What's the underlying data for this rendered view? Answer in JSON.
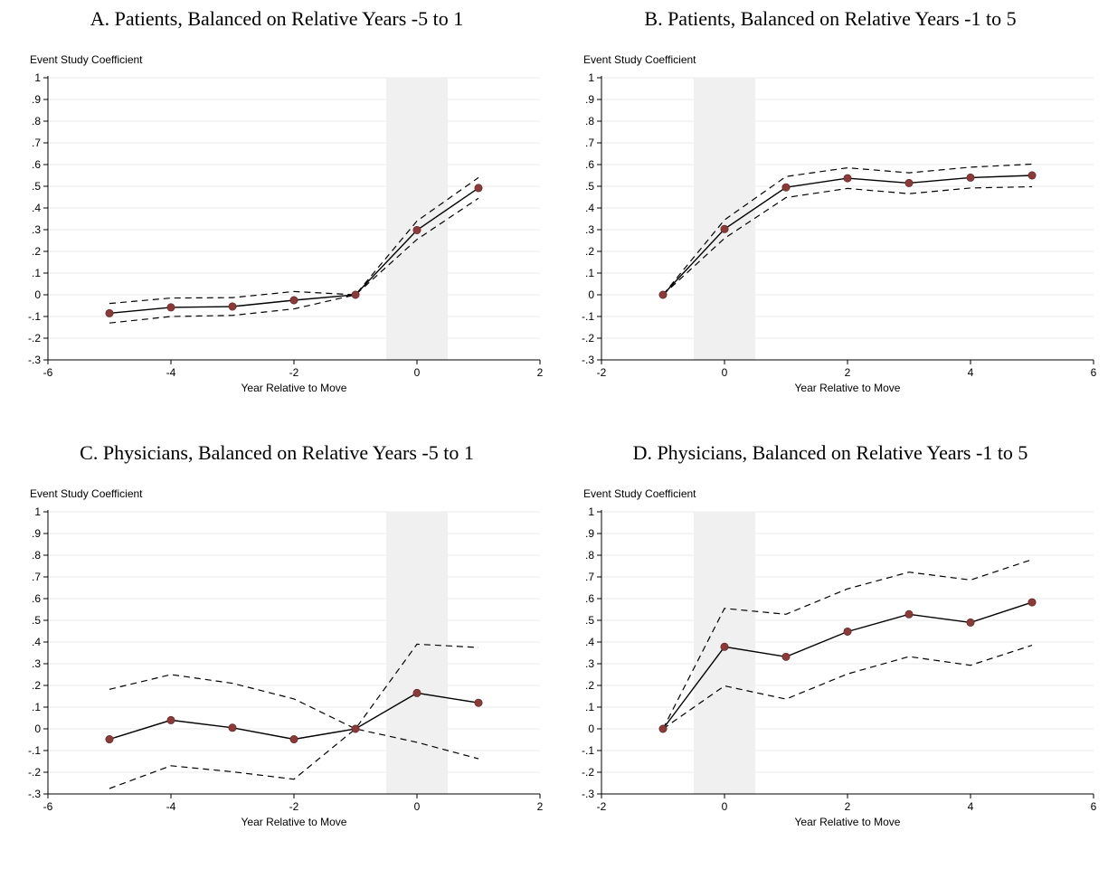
{
  "chart_data": [
    {
      "id": "A",
      "type": "line",
      "title": "A. Patients, Balanced on Relative Years -5 to 1",
      "ylabel": "Event Study Coefficient",
      "xlabel": "Year Relative to Move",
      "xlim": [
        -6,
        2
      ],
      "ylim": [
        -0.3,
        1
      ],
      "xticks": [
        -6,
        -4,
        -2,
        0,
        2
      ],
      "yticks": [
        1,
        0.9,
        0.8,
        0.7,
        0.6,
        0.5,
        0.4,
        0.3,
        0.2,
        0.1,
        0,
        -0.1,
        -0.2,
        -0.3
      ],
      "ytick_labels": [
        "1",
        ".9",
        ".8",
        ".7",
        ".6",
        ".5",
        ".4",
        ".3",
        ".2",
        ".1",
        "0",
        "-.1",
        "-.2",
        "-.3"
      ],
      "shade": [
        -0.5,
        0.5
      ],
      "grid": true,
      "x": [
        -5,
        -4,
        -3,
        -2,
        -1,
        0,
        1
      ],
      "series": [
        {
          "role": "estimate",
          "values": [
            -0.085,
            -0.058,
            -0.054,
            -0.025,
            0,
            0.298,
            0.492
          ]
        },
        {
          "role": "upper",
          "values": [
            -0.04,
            -0.015,
            -0.013,
            0.015,
            0,
            0.34,
            0.54
          ]
        },
        {
          "role": "lower",
          "values": [
            -0.13,
            -0.1,
            -0.095,
            -0.065,
            0,
            0.255,
            0.445
          ]
        }
      ]
    },
    {
      "id": "B",
      "type": "line",
      "title": "B. Patients, Balanced on Relative Years -1 to 5",
      "ylabel": "Event Study Coefficient",
      "xlabel": "Year Relative to Move",
      "xlim": [
        -2,
        6
      ],
      "ylim": [
        -0.3,
        1
      ],
      "xticks": [
        -2,
        0,
        2,
        4,
        6
      ],
      "yticks": [
        1,
        0.9,
        0.8,
        0.7,
        0.6,
        0.5,
        0.4,
        0.3,
        0.2,
        0.1,
        0,
        -0.1,
        -0.2,
        -0.3
      ],
      "ytick_labels": [
        "1",
        ".9",
        ".8",
        ".7",
        ".6",
        ".5",
        ".4",
        ".3",
        ".2",
        ".1",
        "0",
        "-.1",
        "-.2",
        "-.3"
      ],
      "shade": [
        -0.5,
        0.5
      ],
      "grid": true,
      "x": [
        -1,
        0,
        1,
        2,
        3,
        4,
        5
      ],
      "series": [
        {
          "role": "estimate",
          "values": [
            0,
            0.303,
            0.495,
            0.537,
            0.515,
            0.54,
            0.55
          ]
        },
        {
          "role": "upper",
          "values": [
            0,
            0.345,
            0.545,
            0.585,
            0.562,
            0.588,
            0.602
          ]
        },
        {
          "role": "lower",
          "values": [
            0,
            0.26,
            0.448,
            0.49,
            0.466,
            0.492,
            0.498
          ]
        }
      ]
    },
    {
      "id": "C",
      "type": "line",
      "title": "C. Physicians, Balanced on Relative Years -5 to 1",
      "ylabel": "Event Study Coefficient",
      "xlabel": "Year Relative to Move",
      "xlim": [
        -6,
        2
      ],
      "ylim": [
        -0.3,
        1
      ],
      "xticks": [
        -6,
        -4,
        -2,
        0,
        2
      ],
      "yticks": [
        1,
        0.9,
        0.8,
        0.7,
        0.6,
        0.5,
        0.4,
        0.3,
        0.2,
        0.1,
        0,
        -0.1,
        -0.2,
        -0.3
      ],
      "ytick_labels": [
        "1",
        ".9",
        ".8",
        ".7",
        ".6",
        ".5",
        ".4",
        ".3",
        ".2",
        ".1",
        "0",
        "-.1",
        "-.2",
        "-.3"
      ],
      "shade": [
        -0.5,
        0.5
      ],
      "grid": true,
      "x": [
        -5,
        -4,
        -3,
        -2,
        -1,
        0,
        1
      ],
      "series": [
        {
          "role": "estimate",
          "values": [
            -0.048,
            0.04,
            0.005,
            -0.048,
            0,
            0.165,
            0.12
          ]
        },
        {
          "role": "upper",
          "values": [
            0.182,
            0.25,
            0.21,
            0.138,
            0,
            0.39,
            0.375
          ]
        },
        {
          "role": "lower",
          "values": [
            -0.275,
            -0.17,
            -0.198,
            -0.232,
            0,
            -0.062,
            -0.138
          ]
        }
      ]
    },
    {
      "id": "D",
      "type": "line",
      "title": "D. Physicians, Balanced on Relative Years -1 to 5",
      "ylabel": "Event Study Coefficient",
      "xlabel": "Year Relative to Move",
      "xlim": [
        -2,
        6
      ],
      "ylim": [
        -0.3,
        1
      ],
      "xticks": [
        -2,
        0,
        2,
        4,
        6
      ],
      "yticks": [
        1,
        0.9,
        0.8,
        0.7,
        0.6,
        0.5,
        0.4,
        0.3,
        0.2,
        0.1,
        0,
        -0.1,
        -0.2,
        -0.3
      ],
      "ytick_labels": [
        "1",
        ".9",
        ".8",
        ".7",
        ".6",
        ".5",
        ".4",
        ".3",
        ".2",
        ".1",
        "0",
        "-.1",
        "-.2",
        "-.3"
      ],
      "shade": [
        -0.5,
        0.5
      ],
      "grid": true,
      "x": [
        -1,
        0,
        1,
        2,
        3,
        4,
        5
      ],
      "series": [
        {
          "role": "estimate",
          "values": [
            0,
            0.378,
            0.332,
            0.448,
            0.528,
            0.49,
            0.583
          ]
        },
        {
          "role": "upper",
          "values": [
            0,
            0.555,
            0.528,
            0.645,
            0.722,
            0.686,
            0.78
          ]
        },
        {
          "role": "lower",
          "values": [
            0,
            0.198,
            0.137,
            0.253,
            0.333,
            0.293,
            0.385
          ]
        }
      ]
    }
  ],
  "colors": {
    "marker": "#8b3a3a",
    "line": "#000000",
    "grid": "#e9e9e9",
    "shade": "#f0f0f0"
  }
}
